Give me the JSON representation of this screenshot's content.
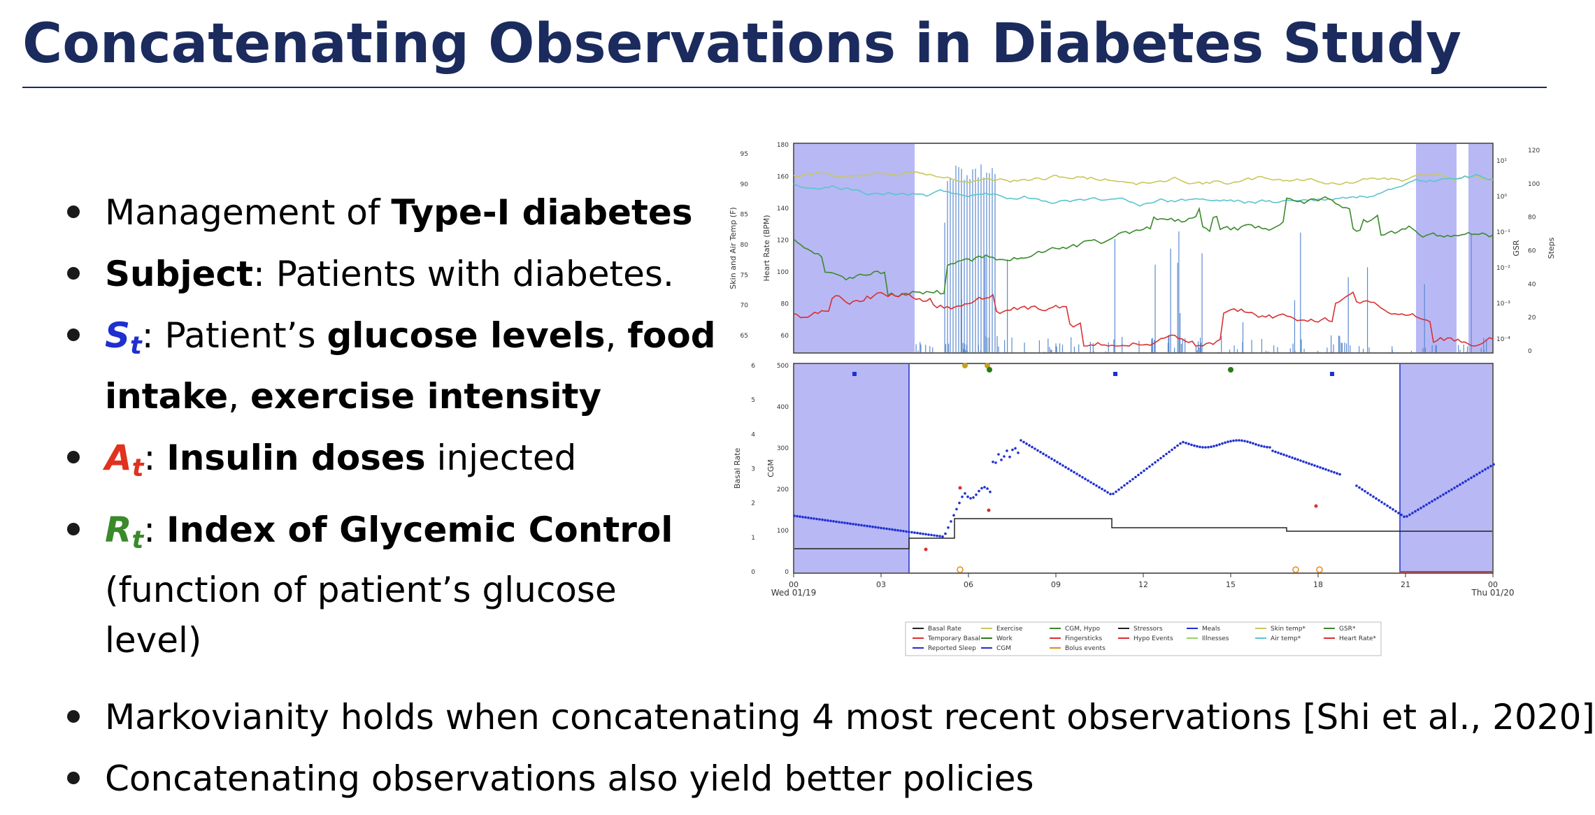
{
  "slide": {
    "title": "Concatenating Observations in Diabetes Study"
  },
  "bullets": {
    "b1": {
      "pre": "Management of ",
      "bold": "Type-I diabetes"
    },
    "b2": {
      "bold": "Subject",
      "post": ": Patients with diabetes."
    },
    "b3": {
      "sym": "S",
      "sub": "t",
      "pre": ": Patient’s ",
      "bold1": "glucose levels",
      "sep": ", ",
      "bold2": "food intake",
      "sep2": ", ",
      "bold3": "exercise intensity"
    },
    "b4": {
      "sym": "A",
      "sub": "t",
      "sep": ": ",
      "bold": "Insulin doses",
      "post": " injected"
    },
    "b5": {
      "sym": "R",
      "sub": "t",
      "sep": ": ",
      "bold": "Index of Glycemic Control",
      "post": "(function of patient’s glucose level)"
    }
  },
  "bottom": {
    "b1": "Markovianity holds when concatenating 4 most recent observations [Shi et al., 2020]",
    "b2": "Concatenating observations also yield better policies"
  },
  "figure": {
    "top_left_ticks": [
      "95",
      "90",
      "85",
      "80",
      "75",
      "70",
      "65"
    ],
    "top_hr_ticks": [
      "180",
      "160",
      "140",
      "120",
      "100",
      "80",
      "60"
    ],
    "top_steps_ticks": [
      "120",
      "100",
      "80",
      "60",
      "40",
      "20",
      "0"
    ],
    "top_gsr_ticks": [
      "10¹",
      "10⁰",
      "10⁻¹",
      "10⁻²",
      "10⁻³",
      "10⁻⁴"
    ],
    "ylabel_skin": "Skin and Air Temp (F)",
    "ylabel_hr": "Heart Rate (BPM)",
    "ylabel_gsr": "GSR",
    "ylabel_steps": "Steps",
    "bot_basal_ticks": [
      "6",
      "5",
      "4",
      "3",
      "2",
      "1",
      "0"
    ],
    "bot_cgm_ticks": [
      "500",
      "400",
      "300",
      "200",
      "100",
      "0"
    ],
    "ylabel_basal": "Basal Rate",
    "ylabel_cgm": "CGM",
    "x_ticks": [
      "00",
      "03",
      "06",
      "09",
      "12",
      "15",
      "18",
      "21",
      "00"
    ],
    "x_date_left": "Wed 01/19",
    "x_date_right": "Thu 01/20",
    "legend": [
      [
        "Basal Rate",
        "Temporary Basal",
        "Reported Sleep"
      ],
      [
        "Exercise",
        "Work",
        "CGM"
      ],
      [
        "CGM, Hypo",
        "Fingersticks",
        "Bolus events"
      ],
      [
        "Stressors",
        "Hypo Events",
        ""
      ],
      [
        "Meals",
        "Illnesses",
        ""
      ],
      [
        "Skin temp*",
        "Air temp*",
        ""
      ],
      [
        "GSR*",
        "Heart Rate*",
        ""
      ]
    ],
    "colors": {
      "sleep": "#b8b8f5",
      "cgm": "#1f2fd0",
      "skin": "#c8c85a",
      "air": "#5ac4cf",
      "gsr": "#3a8a2a",
      "hr": "#d93030",
      "steps": "#5a8ad0",
      "basal": "#222222"
    }
  }
}
